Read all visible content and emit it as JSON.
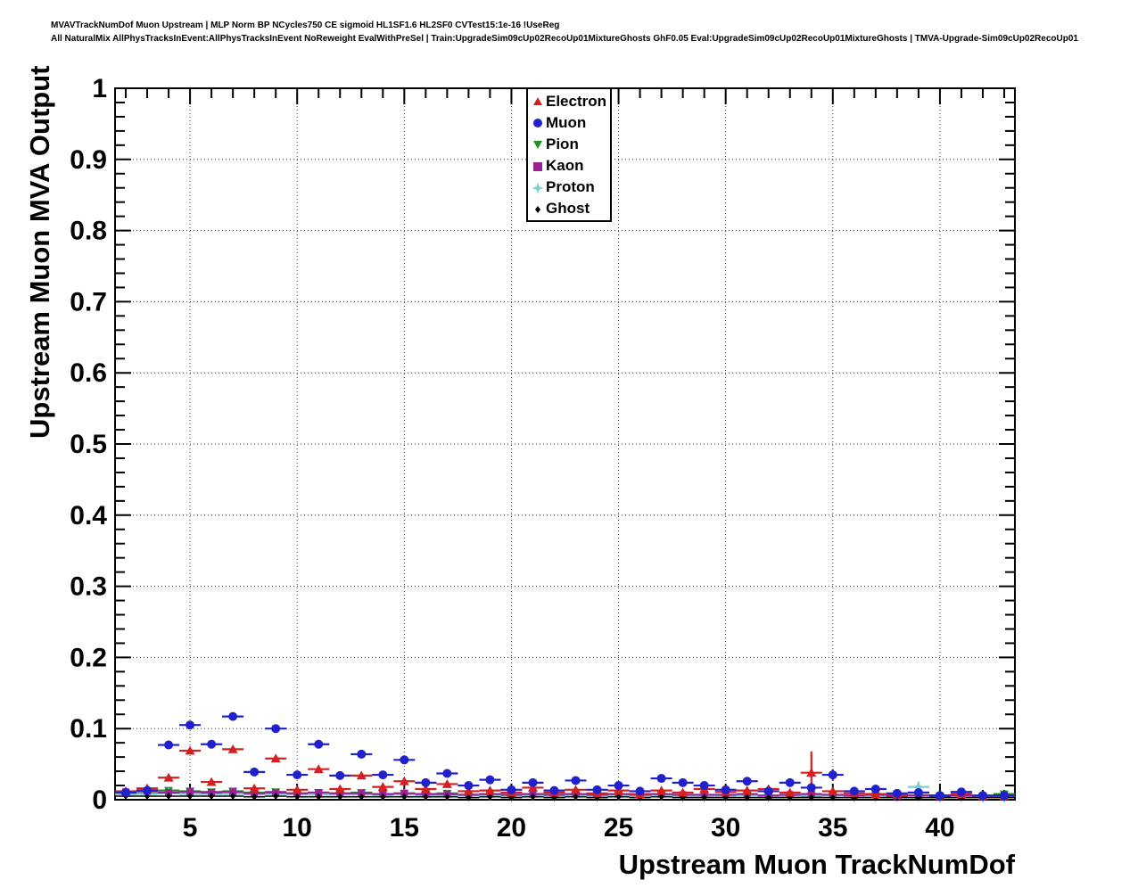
{
  "header": {
    "line1": "MVAVTrackNumDof Muon Upstream | MLP Norm BP NCycles750 CE sigmoid HL1SF1.6 HL2SF0 CVTest15:1e-16 !UseReg",
    "line2": "All NaturalMix AllPhysTracksInEvent:AllPhysTracksInEvent NoReweight EvalWithPreSel | Train:UpgradeSim09cUp02RecoUp01MixtureGhosts GhF0.05 Eval:UpgradeSim09cUp02RecoUp01MixtureGhosts | TMVA-Upgrade-Sim09cUp02RecoUp01"
  },
  "chart_data": {
    "type": "scatter",
    "title": "",
    "xlabel": "Upstream Muon TrackNumDof",
    "ylabel": "Upstream Muon MVA Output",
    "xlim": [
      1.5,
      43.5
    ],
    "ylim": [
      0,
      1
    ],
    "xticks": [
      5,
      10,
      15,
      20,
      25,
      30,
      35,
      40
    ],
    "yticks": [
      0,
      0.1,
      0.2,
      0.3,
      0.4,
      0.5,
      0.6,
      0.7,
      0.8,
      0.9,
      1
    ],
    "x_minor_step": 1,
    "y_minor_step": 0.02,
    "grid": "dotted-major-both-axes",
    "legend_position": "inside-top-center",
    "bin_half_width": 0.5,
    "x_values": [
      2,
      3,
      4,
      5,
      6,
      7,
      8,
      9,
      10,
      11,
      12,
      13,
      14,
      15,
      16,
      17,
      18,
      19,
      20,
      21,
      22,
      23,
      24,
      25,
      26,
      27,
      28,
      29,
      30,
      31,
      32,
      33,
      34,
      35,
      36,
      37,
      38,
      39,
      40,
      41,
      42,
      43
    ],
    "series": [
      {
        "name": "Pion",
        "marker": "triangle-down",
        "color": "#209020",
        "size": 5,
        "values": [
          0.008,
          0.009,
          0.013,
          0.012,
          0.011,
          0.012,
          0.01,
          0.011,
          0.009,
          0.01,
          0.009,
          0.01,
          0.008,
          0.009,
          0.008,
          0.009,
          0.007,
          0.008,
          0.007,
          0.008,
          0.007,
          0.007,
          0.006,
          0.007,
          0.006,
          0.007,
          0.006,
          0.006,
          0.006,
          0.006,
          0.005,
          0.006,
          0.005,
          0.006,
          0.005,
          0.005,
          0.005,
          0.006,
          0.004,
          0.005,
          0.004,
          0.008
        ],
        "yerr": [
          0.001,
          0.001,
          0.001,
          0.001,
          0.001,
          0.001,
          0.001,
          0.001,
          0.001,
          0.001,
          0.001,
          0.001,
          0.001,
          0.001,
          0.001,
          0.001,
          0.001,
          0.001,
          0.001,
          0.001,
          0.001,
          0.001,
          0.001,
          0.001,
          0.001,
          0.001,
          0.001,
          0.001,
          0.001,
          0.001,
          0.001,
          0.001,
          0.001,
          0.001,
          0.001,
          0.001,
          0.001,
          0.002,
          0.001,
          0.001,
          0.001,
          0.002
        ]
      },
      {
        "name": "Proton",
        "marker": "star4",
        "color": "#7ad1d1",
        "size": 5.5,
        "values": [
          0.008,
          0.008,
          0.009,
          0.008,
          0.008,
          0.008,
          0.007,
          0.008,
          0.007,
          0.007,
          0.007,
          0.007,
          0.006,
          0.007,
          0.006,
          0.006,
          0.006,
          0.006,
          0.005,
          0.006,
          0.005,
          0.006,
          0.005,
          0.006,
          0.005,
          0.006,
          0.005,
          0.005,
          0.005,
          0.006,
          0.005,
          0.005,
          0.006,
          0.006,
          0.005,
          0.005,
          0.005,
          0.018,
          0.004,
          0.005,
          0.004,
          0.004
        ],
        "yerr": [
          0.002,
          0.002,
          0.002,
          0.002,
          0.002,
          0.002,
          0.002,
          0.002,
          0.002,
          0.002,
          0.002,
          0.002,
          0.002,
          0.002,
          0.002,
          0.002,
          0.002,
          0.002,
          0.002,
          0.002,
          0.002,
          0.002,
          0.002,
          0.002,
          0.002,
          0.002,
          0.002,
          0.002,
          0.002,
          0.002,
          0.002,
          0.002,
          0.002,
          0.002,
          0.002,
          0.002,
          0.002,
          0.007,
          0.002,
          0.002,
          0.002,
          0.002
        ]
      },
      {
        "name": "Kaon",
        "marker": "square",
        "color": "#992299",
        "size": 4,
        "values": [
          0.011,
          0.012,
          0.01,
          0.011,
          0.01,
          0.011,
          0.009,
          0.01,
          0.009,
          0.01,
          0.009,
          0.009,
          0.008,
          0.009,
          0.008,
          0.008,
          0.007,
          0.008,
          0.007,
          0.008,
          0.007,
          0.008,
          0.007,
          0.008,
          0.007,
          0.008,
          0.007,
          0.007,
          0.007,
          0.008,
          0.006,
          0.007,
          0.008,
          0.007,
          0.006,
          0.007,
          0.005,
          0.006,
          0.005,
          0.006,
          0.005,
          0.005
        ],
        "yerr": [
          0.002,
          0.002,
          0.002,
          0.002,
          0.002,
          0.002,
          0.002,
          0.002,
          0.002,
          0.002,
          0.002,
          0.002,
          0.002,
          0.002,
          0.002,
          0.002,
          0.002,
          0.002,
          0.002,
          0.002,
          0.002,
          0.002,
          0.002,
          0.002,
          0.002,
          0.002,
          0.002,
          0.002,
          0.002,
          0.002,
          0.002,
          0.002,
          0.002,
          0.002,
          0.002,
          0.002,
          0.002,
          0.002,
          0.002,
          0.002,
          0.002,
          0.002
        ]
      },
      {
        "name": "Ghost",
        "marker": "diamond",
        "color": "#000000",
        "size": 4,
        "values": [
          0.005,
          0.005,
          0.005,
          0.005,
          0.005,
          0.005,
          0.004,
          0.005,
          0.004,
          0.004,
          0.004,
          0.004,
          0.004,
          0.004,
          0.004,
          0.004,
          0.003,
          0.004,
          0.003,
          0.004,
          0.003,
          0.004,
          0.003,
          0.004,
          0.003,
          0.004,
          0.003,
          0.003,
          0.003,
          0.003,
          0.003,
          0.003,
          0.003,
          0.003,
          0.003,
          0.003,
          0.003,
          0.003,
          0.003,
          0.003,
          0.003,
          0.003
        ],
        "yerr": [
          0.005,
          0.005,
          0.005,
          0.005,
          0.005,
          0.005,
          0.005,
          0.005,
          0.005,
          0.005,
          0.005,
          0.005,
          0.005,
          0.005,
          0.005,
          0.005,
          0.005,
          0.005,
          0.005,
          0.005,
          0.005,
          0.005,
          0.005,
          0.005,
          0.005,
          0.005,
          0.005,
          0.005,
          0.005,
          0.005,
          0.005,
          0.005,
          0.005,
          0.005,
          0.005,
          0.005,
          0.005,
          0.005,
          0.005,
          0.005,
          0.005,
          0.005
        ]
      },
      {
        "name": "Electron",
        "marker": "triangle-up",
        "color": "#d42020",
        "size": 5.5,
        "values": [
          0.012,
          0.016,
          0.031,
          0.069,
          0.025,
          0.071,
          0.016,
          0.058,
          0.014,
          0.043,
          0.015,
          0.034,
          0.018,
          0.026,
          0.015,
          0.022,
          0.012,
          0.013,
          0.01,
          0.017,
          0.01,
          0.014,
          0.009,
          0.013,
          0.008,
          0.013,
          0.01,
          0.015,
          0.011,
          0.013,
          0.015,
          0.01,
          0.038,
          0.012,
          0.009,
          0.008,
          0.007,
          0.01,
          0.006,
          0.008,
          0.005,
          0.005
        ],
        "yerr": [
          0.002,
          0.002,
          0.003,
          0.004,
          0.003,
          0.004,
          0.003,
          0.004,
          0.002,
          0.003,
          0.002,
          0.003,
          0.002,
          0.003,
          0.002,
          0.003,
          0.002,
          0.003,
          0.002,
          0.003,
          0.002,
          0.003,
          0.002,
          0.003,
          0.002,
          0.003,
          0.003,
          0.004,
          0.003,
          0.004,
          0.005,
          0.004,
          0.03,
          0.005,
          0.003,
          0.003,
          0.003,
          0.005,
          0.002,
          0.004,
          0.002,
          0.003
        ]
      },
      {
        "name": "Muon",
        "marker": "circle",
        "color": "#2020cc",
        "size": 5,
        "values": [
          0.01,
          0.013,
          0.077,
          0.105,
          0.078,
          0.117,
          0.039,
          0.1,
          0.035,
          0.078,
          0.034,
          0.064,
          0.035,
          0.056,
          0.024,
          0.037,
          0.02,
          0.028,
          0.014,
          0.024,
          0.013,
          0.027,
          0.014,
          0.02,
          0.012,
          0.03,
          0.024,
          0.02,
          0.014,
          0.026,
          0.012,
          0.024,
          0.017,
          0.035,
          0.012,
          0.015,
          0.009,
          0.01,
          0.006,
          0.011,
          0.006,
          0.006
        ],
        "yerr": [
          0.002,
          0.002,
          0.003,
          0.004,
          0.003,
          0.004,
          0.003,
          0.004,
          0.002,
          0.003,
          0.002,
          0.003,
          0.002,
          0.003,
          0.002,
          0.003,
          0.002,
          0.003,
          0.002,
          0.003,
          0.002,
          0.003,
          0.002,
          0.003,
          0.002,
          0.004,
          0.003,
          0.003,
          0.003,
          0.004,
          0.003,
          0.004,
          0.004,
          0.008,
          0.003,
          0.004,
          0.003,
          0.004,
          0.002,
          0.004,
          0.002,
          0.003
        ]
      }
    ],
    "legend_order": [
      "Electron",
      "Muon",
      "Pion",
      "Kaon",
      "Proton",
      "Ghost"
    ]
  }
}
